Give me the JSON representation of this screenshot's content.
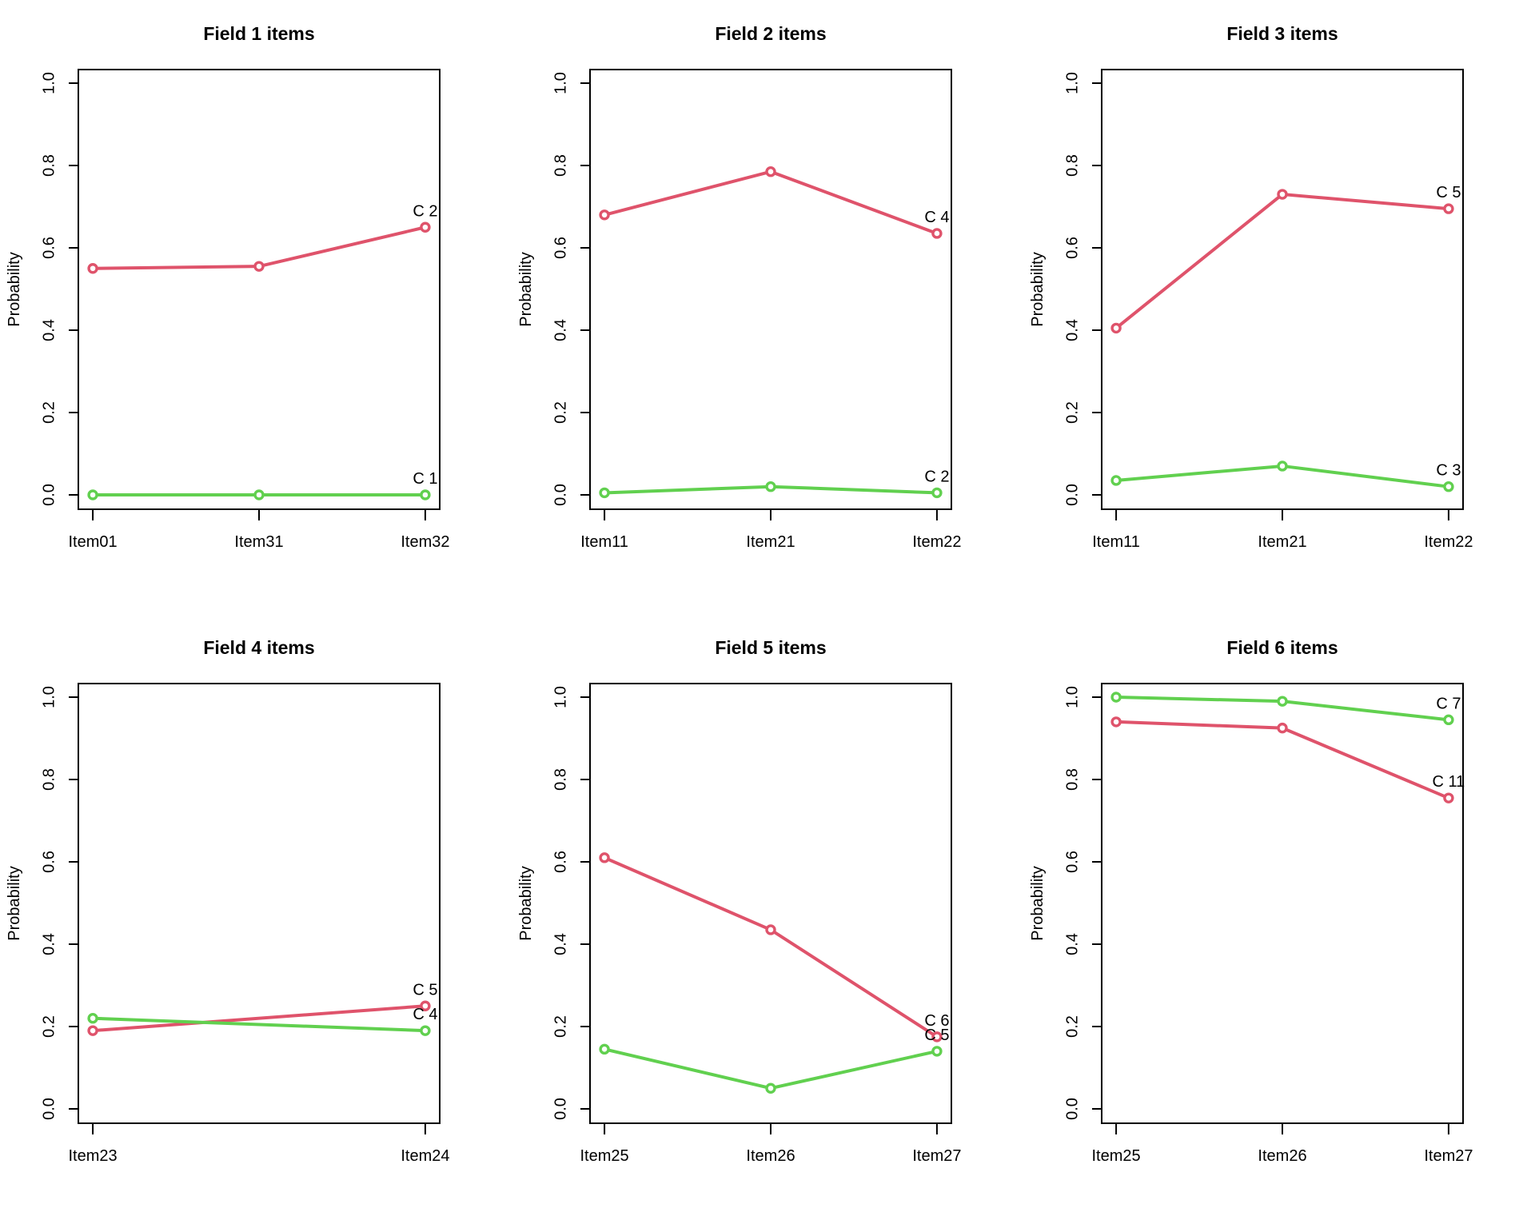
{
  "page": {
    "background": "#ffffff",
    "frame_color": "#000000",
    "text_color": "#000000"
  },
  "chart_data": [
    {
      "type": "line",
      "title": "Field 1 items",
      "ylabel": "Probability",
      "ylim": [
        0,
        1
      ],
      "yticks": [
        "0.0",
        "0.2",
        "0.4",
        "0.6",
        "0.8",
        "1.0"
      ],
      "grid": false,
      "legend_position": "end-of-line-labels",
      "categories": [
        "Item01",
        "Item31",
        "Item32"
      ],
      "series": [
        {
          "name": "C 2",
          "color": "#DF536B",
          "values": [
            0.55,
            0.555,
            0.65
          ]
        },
        {
          "name": "C 1",
          "color": "#61D04F",
          "values": [
            0.0,
            0.0,
            0.0
          ]
        }
      ]
    },
    {
      "type": "line",
      "title": "Field 2 items",
      "ylabel": "Probability",
      "ylim": [
        0,
        1
      ],
      "yticks": [
        "0.0",
        "0.2",
        "0.4",
        "0.6",
        "0.8",
        "1.0"
      ],
      "grid": false,
      "legend_position": "end-of-line-labels",
      "categories": [
        "Item11",
        "Item21",
        "Item22"
      ],
      "series": [
        {
          "name": "C 4",
          "color": "#DF536B",
          "values": [
            0.68,
            0.785,
            0.635
          ]
        },
        {
          "name": "C 2",
          "color": "#61D04F",
          "values": [
            0.005,
            0.02,
            0.005
          ]
        }
      ]
    },
    {
      "type": "line",
      "title": "Field 3 items",
      "ylabel": "Probability",
      "ylim": [
        0,
        1
      ],
      "yticks": [
        "0.0",
        "0.2",
        "0.4",
        "0.6",
        "0.8",
        "1.0"
      ],
      "grid": false,
      "legend_position": "end-of-line-labels",
      "categories": [
        "Item11",
        "Item21",
        "Item22"
      ],
      "series": [
        {
          "name": "C 5",
          "color": "#DF536B",
          "values": [
            0.405,
            0.73,
            0.695
          ]
        },
        {
          "name": "C 3",
          "color": "#61D04F",
          "values": [
            0.035,
            0.07,
            0.02
          ]
        }
      ]
    },
    {
      "type": "line",
      "title": "Field 4 items",
      "ylabel": "Probability",
      "ylim": [
        0,
        1
      ],
      "yticks": [
        "0.0",
        "0.2",
        "0.4",
        "0.6",
        "0.8",
        "1.0"
      ],
      "grid": false,
      "legend_position": "end-of-line-labels",
      "categories": [
        "Item23",
        "Item24"
      ],
      "series": [
        {
          "name": "C 5",
          "color": "#DF536B",
          "values": [
            0.19,
            0.25
          ]
        },
        {
          "name": "C 4",
          "color": "#61D04F",
          "values": [
            0.22,
            0.19
          ]
        }
      ]
    },
    {
      "type": "line",
      "title": "Field 5 items",
      "ylabel": "Probability",
      "ylim": [
        0,
        1
      ],
      "yticks": [
        "0.0",
        "0.2",
        "0.4",
        "0.6",
        "0.8",
        "1.0"
      ],
      "grid": false,
      "legend_position": "end-of-line-labels",
      "categories": [
        "Item25",
        "Item26",
        "Item27"
      ],
      "series": [
        {
          "name": "C 6",
          "color": "#DF536B",
          "values": [
            0.61,
            0.435,
            0.175
          ]
        },
        {
          "name": "C 5",
          "color": "#61D04F",
          "values": [
            0.145,
            0.05,
            0.14
          ]
        }
      ]
    },
    {
      "type": "line",
      "title": "Field 6 items",
      "ylabel": "Probability",
      "ylim": [
        0,
        1
      ],
      "yticks": [
        "0.0",
        "0.2",
        "0.4",
        "0.6",
        "0.8",
        "1.0"
      ],
      "grid": false,
      "legend_position": "end-of-line-labels",
      "categories": [
        "Item25",
        "Item26",
        "Item27"
      ],
      "series": [
        {
          "name": "C 7",
          "color": "#61D04F",
          "values": [
            1.0,
            0.99,
            0.945
          ]
        },
        {
          "name": "C 11",
          "color": "#DF536B",
          "values": [
            0.94,
            0.925,
            0.755
          ]
        }
      ]
    }
  ]
}
